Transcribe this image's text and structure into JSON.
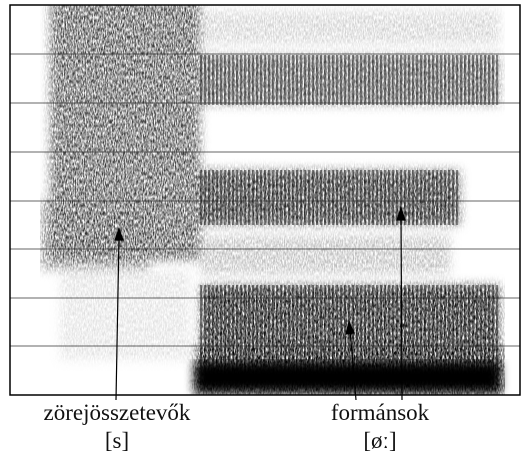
{
  "labels": [
    {
      "text": "zörejösszetevők",
      "sound": "[s]"
    },
    {
      "text": "formánsok",
      "sound": "[øː]"
    }
  ]
}
